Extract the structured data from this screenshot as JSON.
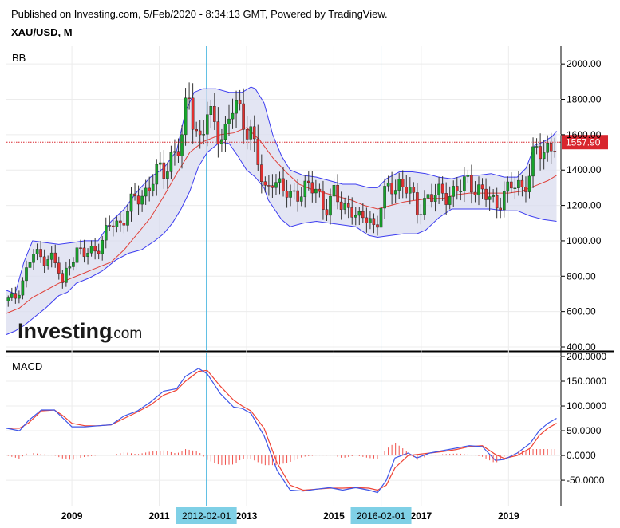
{
  "header": {
    "published": "Published on Investing.com, 5/Feb/2020 - 8:34:13 GMT, Powered by TradingView.",
    "symbol": "XAU/USD, M"
  },
  "watermark": {
    "brand": "Investing",
    "suffix": ".com"
  },
  "colors": {
    "up": "#17a42b",
    "down": "#e03030",
    "band_fill": "#dadcef",
    "band_line": "#3d3df0",
    "basis": "#e0413a",
    "macd_line": "#3d55e8",
    "signal_line": "#ef4335",
    "hist": "#f0504a",
    "vline": "#49b6e0",
    "price_line": "#d8262e",
    "highlight": "#7fd0e6"
  },
  "chart_data": [
    {
      "type": "line",
      "title": "BB",
      "description_series": [
        "candles",
        "upper_band",
        "lower_band",
        "basis"
      ],
      "ylim": [
        400,
        2100
      ],
      "yticks": [
        "2000.00",
        "1800.00",
        "1600.00",
        "1400.00",
        "1200.00",
        "1000.00",
        "800.00",
        "600.00",
        "400.00"
      ],
      "ytick_values": [
        2000,
        1800,
        1600,
        1400,
        1200,
        1000,
        800,
        600,
        400
      ],
      "last_price_label": "1557.90",
      "last_price": 1557.9,
      "t_range": [
        2007.5,
        2020.2
      ],
      "candle_anchors": [
        [
          2007.5,
          660
        ],
        [
          2007.7,
          680
        ],
        [
          2007.9,
          790
        ],
        [
          2008.1,
          930
        ],
        [
          2008.3,
          900
        ],
        [
          2008.5,
          920
        ],
        [
          2008.7,
          830
        ],
        [
          2008.8,
          730
        ],
        [
          2008.9,
          870
        ],
        [
          2009.1,
          940
        ],
        [
          2009.3,
          920
        ],
        [
          2009.5,
          950
        ],
        [
          2009.7,
          1000
        ],
        [
          2009.9,
          1100
        ],
        [
          2010.1,
          1090
        ],
        [
          2010.3,
          1200
        ],
        [
          2010.5,
          1230
        ],
        [
          2010.7,
          1280
        ],
        [
          2010.9,
          1390
        ],
        [
          2011.1,
          1370
        ],
        [
          2011.3,
          1500
        ],
        [
          2011.5,
          1550
        ],
        [
          2011.67,
          1820
        ],
        [
          2011.8,
          1660
        ],
        [
          2011.95,
          1570
        ],
        [
          2012.1,
          1730
        ],
        [
          2012.3,
          1610
        ],
        [
          2012.5,
          1620
        ],
        [
          2012.7,
          1770
        ],
        [
          2012.9,
          1680
        ],
        [
          2013.1,
          1630
        ],
        [
          2013.25,
          1470
        ],
        [
          2013.4,
          1240
        ],
        [
          2013.6,
          1380
        ],
        [
          2013.8,
          1290
        ],
        [
          2014.0,
          1240
        ],
        [
          2014.2,
          1290
        ],
        [
          2014.4,
          1300
        ],
        [
          2014.6,
          1280
        ],
        [
          2014.8,
          1190
        ],
        [
          2015.0,
          1260
        ],
        [
          2015.2,
          1180
        ],
        [
          2015.4,
          1200
        ],
        [
          2015.6,
          1100
        ],
        [
          2015.8,
          1140
        ],
        [
          2015.95,
          1060
        ],
        [
          2016.1,
          1240
        ],
        [
          2016.3,
          1290
        ],
        [
          2016.5,
          1330
        ],
        [
          2016.7,
          1310
        ],
        [
          2016.9,
          1150
        ],
        [
          2017.1,
          1250
        ],
        [
          2017.3,
          1260
        ],
        [
          2017.5,
          1250
        ],
        [
          2017.7,
          1280
        ],
        [
          2017.9,
          1300
        ],
        [
          2018.1,
          1330
        ],
        [
          2018.3,
          1300
        ],
        [
          2018.5,
          1250
        ],
        [
          2018.7,
          1190
        ],
        [
          2018.9,
          1280
        ],
        [
          2019.1,
          1310
        ],
        [
          2019.3,
          1290
        ],
        [
          2019.5,
          1410
        ],
        [
          2019.6,
          1520
        ],
        [
          2019.8,
          1470
        ],
        [
          2020.0,
          1580
        ],
        [
          2020.1,
          1557.9
        ]
      ],
      "upper_anchors": [
        [
          2007.5,
          720
        ],
        [
          2007.7,
          700
        ],
        [
          2007.9,
          880
        ],
        [
          2008.1,
          1000
        ],
        [
          2008.4,
          990
        ],
        [
          2008.7,
          980
        ],
        [
          2009.0,
          990
        ],
        [
          2009.3,
          1000
        ],
        [
          2009.6,
          1000
        ],
        [
          2009.9,
          1110
        ],
        [
          2010.2,
          1180
        ],
        [
          2010.5,
          1280
        ],
        [
          2010.8,
          1360
        ],
        [
          2011.1,
          1410
        ],
        [
          2011.4,
          1510
        ],
        [
          2011.6,
          1730
        ],
        [
          2011.8,
          1840
        ],
        [
          2012.0,
          1860
        ],
        [
          2012.3,
          1860
        ],
        [
          2012.6,
          1840
        ],
        [
          2012.9,
          1840
        ],
        [
          2013.1,
          1870
        ],
        [
          2013.2,
          1860
        ],
        [
          2013.4,
          1780
        ],
        [
          2013.6,
          1600
        ],
        [
          2013.8,
          1480
        ],
        [
          2014.0,
          1400
        ],
        [
          2014.3,
          1370
        ],
        [
          2014.6,
          1360
        ],
        [
          2014.9,
          1340
        ],
        [
          2015.2,
          1320
        ],
        [
          2015.5,
          1320
        ],
        [
          2015.8,
          1300
        ],
        [
          2016.0,
          1300
        ],
        [
          2016.2,
          1350
        ],
        [
          2016.5,
          1390
        ],
        [
          2016.8,
          1390
        ],
        [
          2017.1,
          1380
        ],
        [
          2017.4,
          1360
        ],
        [
          2017.7,
          1350
        ],
        [
          2018.0,
          1370
        ],
        [
          2018.3,
          1370
        ],
        [
          2018.6,
          1380
        ],
        [
          2018.9,
          1360
        ],
        [
          2019.2,
          1360
        ],
        [
          2019.4,
          1410
        ],
        [
          2019.6,
          1540
        ],
        [
          2019.8,
          1560
        ],
        [
          2020.0,
          1590
        ],
        [
          2020.1,
          1620
        ]
      ],
      "lower_anchors": [
        [
          2007.5,
          470
        ],
        [
          2007.7,
          490
        ],
        [
          2007.9,
          520
        ],
        [
          2008.1,
          560
        ],
        [
          2008.4,
          620
        ],
        [
          2008.7,
          690
        ],
        [
          2008.9,
          710
        ],
        [
          2009.1,
          760
        ],
        [
          2009.4,
          790
        ],
        [
          2009.7,
          830
        ],
        [
          2010.0,
          890
        ],
        [
          2010.3,
          930
        ],
        [
          2010.6,
          950
        ],
        [
          2010.9,
          1000
        ],
        [
          2011.1,
          1040
        ],
        [
          2011.3,
          1100
        ],
        [
          2011.5,
          1180
        ],
        [
          2011.7,
          1280
        ],
        [
          2011.9,
          1420
        ],
        [
          2012.1,
          1500
        ],
        [
          2012.4,
          1560
        ],
        [
          2012.6,
          1550
        ],
        [
          2012.8,
          1480
        ],
        [
          2013.0,
          1400
        ],
        [
          2013.2,
          1360
        ],
        [
          2013.4,
          1300
        ],
        [
          2013.5,
          1230
        ],
        [
          2013.8,
          1120
        ],
        [
          2014.0,
          1080
        ],
        [
          2014.3,
          1100
        ],
        [
          2014.6,
          1110
        ],
        [
          2014.9,
          1100
        ],
        [
          2015.2,
          1090
        ],
        [
          2015.5,
          1080
        ],
        [
          2015.8,
          1030
        ],
        [
          2016.0,
          1020
        ],
        [
          2016.3,
          1030
        ],
        [
          2016.6,
          1040
        ],
        [
          2016.9,
          1040
        ],
        [
          2017.1,
          1060
        ],
        [
          2017.4,
          1130
        ],
        [
          2017.7,
          1180
        ],
        [
          2018.0,
          1180
        ],
        [
          2018.3,
          1180
        ],
        [
          2018.6,
          1180
        ],
        [
          2018.9,
          1170
        ],
        [
          2019.2,
          1170
        ],
        [
          2019.5,
          1140
        ],
        [
          2019.8,
          1120
        ],
        [
          2020.1,
          1110
        ]
      ],
      "basis_anchors": [
        [
          2007.5,
          590
        ],
        [
          2007.8,
          620
        ],
        [
          2008.1,
          680
        ],
        [
          2008.4,
          720
        ],
        [
          2008.7,
          760
        ],
        [
          2009.0,
          790
        ],
        [
          2009.3,
          820
        ],
        [
          2009.6,
          850
        ],
        [
          2009.9,
          880
        ],
        [
          2010.2,
          950
        ],
        [
          2010.5,
          1040
        ],
        [
          2010.8,
          1130
        ],
        [
          2011.1,
          1250
        ],
        [
          2011.4,
          1380
        ],
        [
          2011.7,
          1500
        ],
        [
          2012.0,
          1560
        ],
        [
          2012.4,
          1600
        ],
        [
          2012.7,
          1610
        ],
        [
          2013.0,
          1640
        ],
        [
          2013.3,
          1570
        ],
        [
          2013.6,
          1470
        ],
        [
          2013.9,
          1390
        ],
        [
          2014.2,
          1320
        ],
        [
          2014.5,
          1290
        ],
        [
          2014.8,
          1270
        ],
        [
          2015.1,
          1250
        ],
        [
          2015.4,
          1230
        ],
        [
          2015.7,
          1200
        ],
        [
          2016.0,
          1180
        ],
        [
          2016.3,
          1200
        ],
        [
          2016.6,
          1220
        ],
        [
          2016.9,
          1230
        ],
        [
          2017.2,
          1240
        ],
        [
          2017.5,
          1240
        ],
        [
          2017.8,
          1260
        ],
        [
          2018.1,
          1270
        ],
        [
          2018.4,
          1270
        ],
        [
          2018.7,
          1270
        ],
        [
          2019.0,
          1270
        ],
        [
          2019.3,
          1280
        ],
        [
          2019.6,
          1310
        ],
        [
          2019.9,
          1340
        ],
        [
          2020.1,
          1370
        ]
      ]
    },
    {
      "type": "line",
      "title": "MACD",
      "ylim": [
        -95,
        200
      ],
      "yticks": [
        "200.0000",
        "150.0000",
        "100.0000",
        "50.0000",
        "0.0000",
        "-50.0000"
      ],
      "ytick_values": [
        200,
        150,
        100,
        50,
        0,
        -50
      ],
      "t_range": [
        2007.5,
        2020.2
      ],
      "macd_anchors": [
        [
          2007.5,
          55
        ],
        [
          2007.8,
          50
        ],
        [
          2008.0,
          70
        ],
        [
          2008.3,
          92
        ],
        [
          2008.6,
          92
        ],
        [
          2008.8,
          75
        ],
        [
          2009.0,
          58
        ],
        [
          2009.3,
          58
        ],
        [
          2009.6,
          60
        ],
        [
          2009.9,
          62
        ],
        [
          2010.2,
          80
        ],
        [
          2010.5,
          90
        ],
        [
          2010.8,
          108
        ],
        [
          2011.1,
          130
        ],
        [
          2011.4,
          135
        ],
        [
          2011.6,
          160
        ],
        [
          2011.9,
          176
        ],
        [
          2012.1,
          165
        ],
        [
          2012.4,
          125
        ],
        [
          2012.7,
          98
        ],
        [
          2012.9,
          95
        ],
        [
          2013.1,
          85
        ],
        [
          2013.4,
          40
        ],
        [
          2013.7,
          -30
        ],
        [
          2014.0,
          -70
        ],
        [
          2014.3,
          -72
        ],
        [
          2014.6,
          -68
        ],
        [
          2014.9,
          -65
        ],
        [
          2015.2,
          -70
        ],
        [
          2015.5,
          -65
        ],
        [
          2015.8,
          -70
        ],
        [
          2016.0,
          -75
        ],
        [
          2016.2,
          -50
        ],
        [
          2016.4,
          -5
        ],
        [
          2016.7,
          5
        ],
        [
          2016.9,
          -5
        ],
        [
          2017.2,
          5
        ],
        [
          2017.5,
          10
        ],
        [
          2017.8,
          15
        ],
        [
          2018.1,
          20
        ],
        [
          2018.4,
          18
        ],
        [
          2018.7,
          -10
        ],
        [
          2018.9,
          -8
        ],
        [
          2019.2,
          5
        ],
        [
          2019.5,
          25
        ],
        [
          2019.7,
          50
        ],
        [
          2019.9,
          65
        ],
        [
          2020.1,
          75
        ]
      ],
      "signal_anchors": [
        [
          2007.5,
          55
        ],
        [
          2007.8,
          55
        ],
        [
          2008.0,
          65
        ],
        [
          2008.3,
          90
        ],
        [
          2008.6,
          92
        ],
        [
          2008.8,
          80
        ],
        [
          2009.0,
          65
        ],
        [
          2009.3,
          60
        ],
        [
          2009.6,
          60
        ],
        [
          2009.9,
          62
        ],
        [
          2010.2,
          75
        ],
        [
          2010.5,
          88
        ],
        [
          2010.8,
          102
        ],
        [
          2011.1,
          122
        ],
        [
          2011.4,
          132
        ],
        [
          2011.6,
          150
        ],
        [
          2011.9,
          170
        ],
        [
          2012.1,
          172
        ],
        [
          2012.4,
          140
        ],
        [
          2012.7,
          112
        ],
        [
          2012.9,
          100
        ],
        [
          2013.1,
          90
        ],
        [
          2013.4,
          55
        ],
        [
          2013.7,
          -15
        ],
        [
          2014.0,
          -60
        ],
        [
          2014.3,
          -70
        ],
        [
          2014.6,
          -68
        ],
        [
          2014.9,
          -66
        ],
        [
          2015.2,
          -66
        ],
        [
          2015.5,
          -65
        ],
        [
          2015.8,
          -66
        ],
        [
          2016.0,
          -70
        ],
        [
          2016.2,
          -60
        ],
        [
          2016.4,
          -25
        ],
        [
          2016.7,
          0
        ],
        [
          2016.9,
          2
        ],
        [
          2017.2,
          5
        ],
        [
          2017.5,
          8
        ],
        [
          2017.8,
          12
        ],
        [
          2018.1,
          18
        ],
        [
          2018.4,
          20
        ],
        [
          2018.7,
          2
        ],
        [
          2018.9,
          -6
        ],
        [
          2019.2,
          0
        ],
        [
          2019.5,
          15
        ],
        [
          2019.7,
          40
        ],
        [
          2019.9,
          55
        ],
        [
          2020.1,
          65
        ]
      ]
    }
  ],
  "x_axis": {
    "ticks": [
      {
        "label": "2009",
        "t": 2009.0
      },
      {
        "label": "2011",
        "t": 2011.0
      },
      {
        "label": "2013",
        "t": 2013.0
      },
      {
        "label": "2015",
        "t": 2015.0
      },
      {
        "label": "2017",
        "t": 2017.0
      },
      {
        "label": "2019",
        "t": 2019.0
      }
    ],
    "highlights": [
      {
        "label": "2012-02-01",
        "t": 2012.08
      },
      {
        "label": "2016-02-01",
        "t": 2016.08
      }
    ]
  }
}
